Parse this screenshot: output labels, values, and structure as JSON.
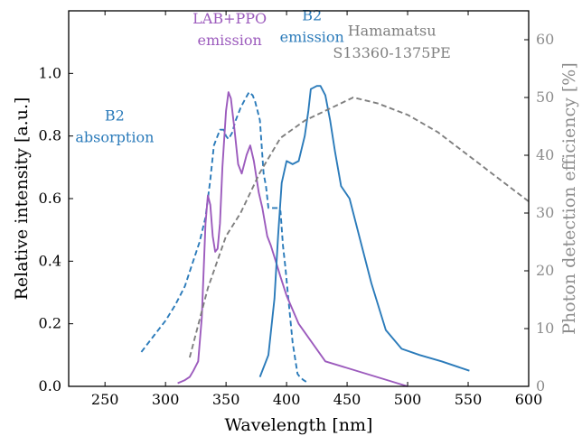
{
  "chart_data": {
    "type": "line",
    "xlabel": "Wavelength [nm]",
    "ylabel": "Relative intensity [a.u.]",
    "y2label": "Photon detection efficiency [%]",
    "xlim": [
      220,
      600
    ],
    "ylim": [
      0,
      1.2
    ],
    "y2lim": [
      0,
      65
    ],
    "xticks": [
      "250",
      "300",
      "350",
      "400",
      "450",
      "500",
      "550",
      "600"
    ],
    "yticks": [
      "0.0",
      "0.2",
      "0.4",
      "0.6",
      "0.8",
      "1.0"
    ],
    "y2ticks": [
      "0",
      "10",
      "20",
      "30",
      "40",
      "50",
      "60"
    ],
    "grid": false,
    "legend": "none",
    "colors": {
      "b2": "#2b7bba",
      "labppo": "#9c5bbd",
      "hamamatsu": "#7f7f7f",
      "right_axis": "#8c8c8c"
    },
    "series": [
      {
        "id": "b2_absorption",
        "axis": "left",
        "style": "dashed",
        "color": "#2b7bba",
        "x": [
          280,
          290,
          300,
          308,
          316,
          322,
          328,
          333,
          337,
          340,
          345,
          348,
          350,
          352,
          355,
          358,
          362,
          366,
          369,
          372,
          374,
          376,
          378,
          381,
          383,
          385,
          388,
          390,
          393,
          395,
          397,
          399,
          401,
          403,
          405,
          407,
          409,
          411,
          414,
          418
        ],
        "y": [
          0.11,
          0.16,
          0.21,
          0.26,
          0.32,
          0.39,
          0.46,
          0.54,
          0.66,
          0.77,
          0.82,
          0.82,
          0.8,
          0.79,
          0.81,
          0.85,
          0.89,
          0.92,
          0.94,
          0.93,
          0.91,
          0.88,
          0.85,
          0.68,
          0.64,
          0.57,
          0.57,
          0.57,
          0.57,
          0.56,
          0.45,
          0.38,
          0.3,
          0.22,
          0.14,
          0.09,
          0.04,
          0.03,
          0.02,
          0.01
        ]
      },
      {
        "id": "labppo_emission",
        "axis": "left",
        "style": "solid",
        "color": "#9c5bbd",
        "x": [
          310,
          316,
          320,
          323,
          327,
          330,
          333,
          335,
          337,
          339,
          341,
          343,
          345,
          347,
          350,
          352,
          354,
          357,
          360,
          363,
          367,
          370,
          373,
          377,
          380,
          384,
          387,
          391,
          395,
          400,
          410,
          432,
          500
        ],
        "y": [
          0.01,
          0.02,
          0.03,
          0.05,
          0.08,
          0.22,
          0.52,
          0.61,
          0.58,
          0.48,
          0.43,
          0.44,
          0.52,
          0.7,
          0.88,
          0.94,
          0.92,
          0.82,
          0.71,
          0.68,
          0.74,
          0.77,
          0.72,
          0.62,
          0.57,
          0.48,
          0.45,
          0.4,
          0.35,
          0.29,
          0.2,
          0.08,
          0.0
        ]
      },
      {
        "id": "b2_emission",
        "axis": "left",
        "style": "solid",
        "color": "#2b7bba",
        "x": [
          378,
          385,
          390,
          393,
          396,
          400,
          405,
          410,
          415,
          418,
          420,
          425,
          428,
          432,
          436,
          440,
          445,
          452,
          460,
          470,
          482,
          495,
          510,
          528,
          551
        ],
        "y": [
          0.03,
          0.1,
          0.28,
          0.48,
          0.65,
          0.72,
          0.71,
          0.72,
          0.8,
          0.88,
          0.95,
          0.96,
          0.96,
          0.93,
          0.85,
          0.75,
          0.64,
          0.6,
          0.48,
          0.33,
          0.18,
          0.12,
          0.1,
          0.08,
          0.05
        ]
      },
      {
        "id": "hamamatsu_pde",
        "axis": "right",
        "style": "dashed",
        "color": "#7f7f7f",
        "x": [
          320,
          335,
          350,
          362,
          378,
          395,
          415,
          435,
          455,
          475,
          500,
          525,
          550,
          575,
          600
        ],
        "y": [
          5,
          17,
          26,
          30,
          37,
          43,
          46,
          48,
          50,
          49,
          47,
          44,
          40,
          36,
          32
        ]
      }
    ],
    "annotations": [
      {
        "id": "labppo-label",
        "lines": [
          "LAB+PPO",
          "emission"
        ],
        "color": "#9c5bbd",
        "x": 353,
        "y": [
          1.16,
          1.09
        ]
      },
      {
        "id": "b2-emission-label",
        "lines": [
          "B2",
          "emission"
        ],
        "color": "#2b7bba",
        "x": 421,
        "y": [
          1.17,
          1.1
        ]
      },
      {
        "id": "b2-absorption-label",
        "lines": [
          "B2",
          "absorption"
        ],
        "color": "#2b7bba",
        "x": 258,
        "y": [
          0.85,
          0.78
        ]
      },
      {
        "id": "hamamatsu-label",
        "lines": [
          "Hamamatsu",
          "S13360-1375PE"
        ],
        "color": "#7f7f7f",
        "x": 487,
        "y": [
          1.12,
          1.05
        ]
      }
    ]
  }
}
